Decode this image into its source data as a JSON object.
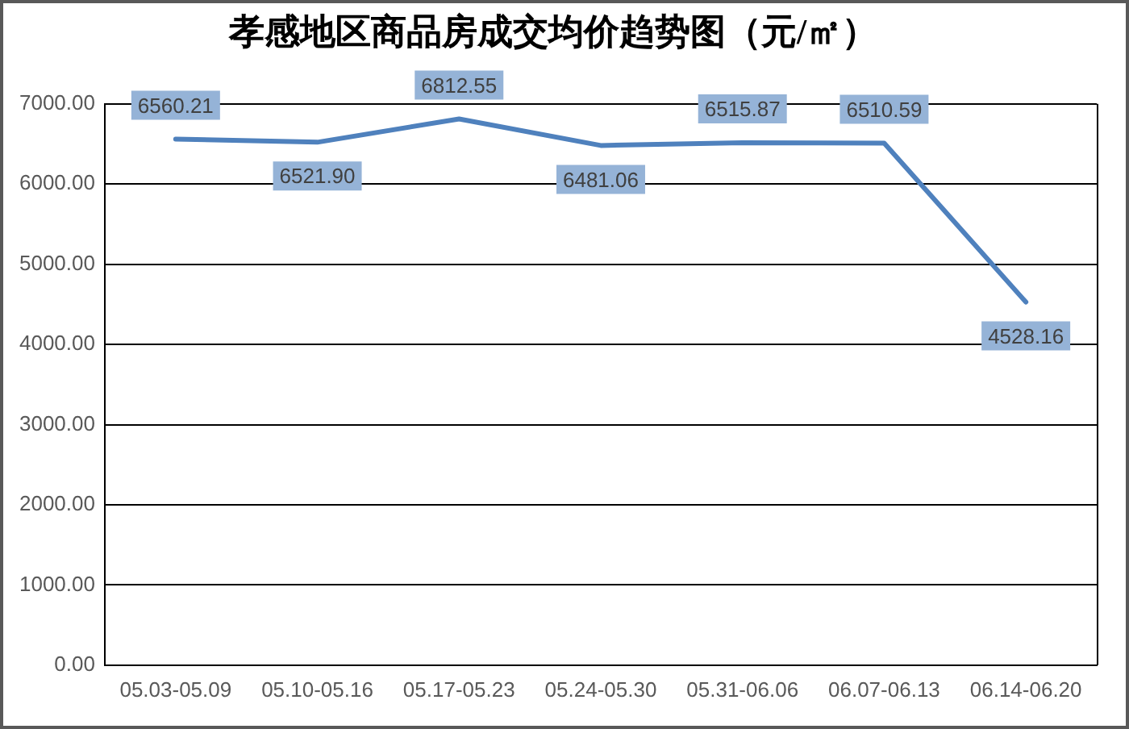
{
  "chart_data": {
    "type": "line",
    "title": "孝感地区商品房成交均价趋势图（元/㎡）",
    "categories": [
      "05.03-05.09",
      "05.10-05.16",
      "05.17-05.23",
      "05.24-05.30",
      "05.31-06.06",
      "06.07-06.13",
      "06.14-06.20"
    ],
    "series": [
      {
        "color": "#4f81bd",
        "values": [
          6560.21,
          6521.9,
          6812.55,
          6481.06,
          6515.87,
          6510.59,
          4528.16
        ],
        "value_labels": [
          "6560.21",
          "6521.90",
          "6812.55",
          "6481.06",
          "6515.87",
          "6510.59",
          "4528.16"
        ]
      }
    ],
    "ylim": [
      0,
      7000
    ],
    "yticks": [
      {
        "value": 0,
        "label": "0.00"
      },
      {
        "value": 1000,
        "label": "1000.00"
      },
      {
        "value": 2000,
        "label": "2000.00"
      },
      {
        "value": 3000,
        "label": "3000.00"
      },
      {
        "value": 4000,
        "label": "4000.00"
      },
      {
        "value": 5000,
        "label": "5000.00"
      },
      {
        "value": 6000,
        "label": "6000.00"
      },
      {
        "value": 7000,
        "label": "7000.00"
      }
    ],
    "grid": "y",
    "legend": false,
    "marker": "none",
    "line_style": "solid"
  }
}
